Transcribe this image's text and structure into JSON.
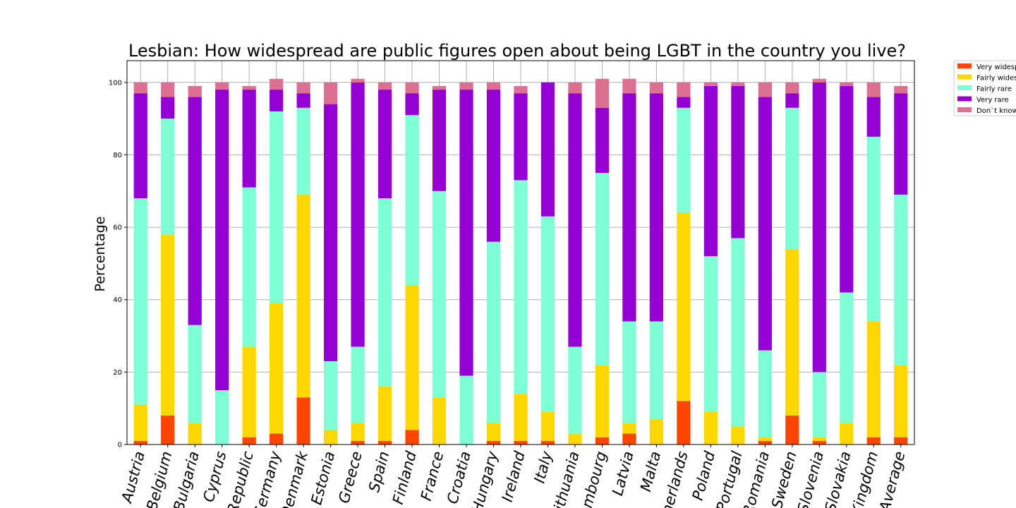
{
  "chart_data": {
    "type": "bar",
    "stacked": true,
    "title": "Lesbian: How widespread are public figures open about being LGBT in the country you live?",
    "xlabel": "",
    "ylabel": "Percentage",
    "ylim": [
      0,
      106
    ],
    "yticks": [
      0,
      20,
      40,
      60,
      80,
      100
    ],
    "grid": true,
    "legend_position": "top-right, outside plot (clipped)",
    "categories": [
      "Austria",
      "Belgium",
      "Bulgaria",
      "Cyprus",
      "Republic",
      "Germany",
      "Denmark",
      "Estonia",
      "Greece",
      "Spain",
      "Finland",
      "France",
      "Croatia",
      "Hungary",
      "Ireland",
      "Italy",
      "Lithuania",
      "Luxembourg",
      "Latvia",
      "Malta",
      "Netherlands",
      "Poland",
      "Portugal",
      "Romania",
      "Sweden",
      "Slovenia",
      "Slovakia",
      "Kingdom",
      "Average"
    ],
    "category_labels_visible": [
      "Austria",
      "Belgium",
      "Bulgaria",
      "Cyprus",
      "Republic",
      "Germany",
      "Denmark",
      "Estonia",
      "Greece",
      "Spain",
      "Finland",
      "France",
      "Croatia",
      "Hungary",
      "Ireland",
      "Italy",
      "ithuania",
      "embourg",
      "Latvia",
      "Malta",
      "nerlands",
      "Poland",
      "Portugal",
      "Romania",
      "Sweden",
      "Slovenia",
      "Slovakia",
      "Kingdom",
      "Average"
    ],
    "series": [
      {
        "name": "Very widesp",
        "color": "#FF4500",
        "values": [
          1,
          8,
          0,
          0,
          2,
          3,
          13,
          0,
          1,
          1,
          4,
          0,
          0,
          1,
          1,
          1,
          0,
          2,
          3,
          0,
          12,
          0,
          0,
          1,
          8,
          1,
          0,
          2,
          2
        ]
      },
      {
        "name": "Fairly wides",
        "color": "#FFD700",
        "values": [
          10,
          50,
          6,
          0,
          25,
          36,
          56,
          4,
          5,
          15,
          40,
          13,
          0,
          5,
          13,
          8,
          3,
          20,
          3,
          7,
          52,
          9,
          5,
          1,
          46,
          1,
          6,
          32,
          20
        ]
      },
      {
        "name": "Fairly rare",
        "color": "#7FFFD4",
        "values": [
          57,
          32,
          27,
          15,
          44,
          53,
          24,
          19,
          21,
          52,
          47,
          57,
          19,
          50,
          59,
          54,
          24,
          53,
          28,
          27,
          29,
          43,
          52,
          24,
          39,
          18,
          36,
          51,
          47
        ]
      },
      {
        "name": "Very rare",
        "color": "#9400D3",
        "values": [
          29,
          6,
          63,
          83,
          27,
          6,
          4,
          71,
          73,
          30,
          6,
          28,
          79,
          42,
          24,
          37,
          70,
          18,
          63,
          63,
          3,
          47,
          42,
          70,
          4,
          80,
          57,
          11,
          28
        ]
      },
      {
        "name": "Don`t know",
        "color": "#DB7093",
        "values": [
          3,
          4,
          3,
          2,
          1,
          3,
          3,
          6,
          1,
          2,
          3,
          1,
          2,
          2,
          2,
          0,
          3,
          8,
          4,
          3,
          4,
          1,
          1,
          4,
          3,
          1,
          1,
          4,
          2
        ]
      }
    ]
  }
}
